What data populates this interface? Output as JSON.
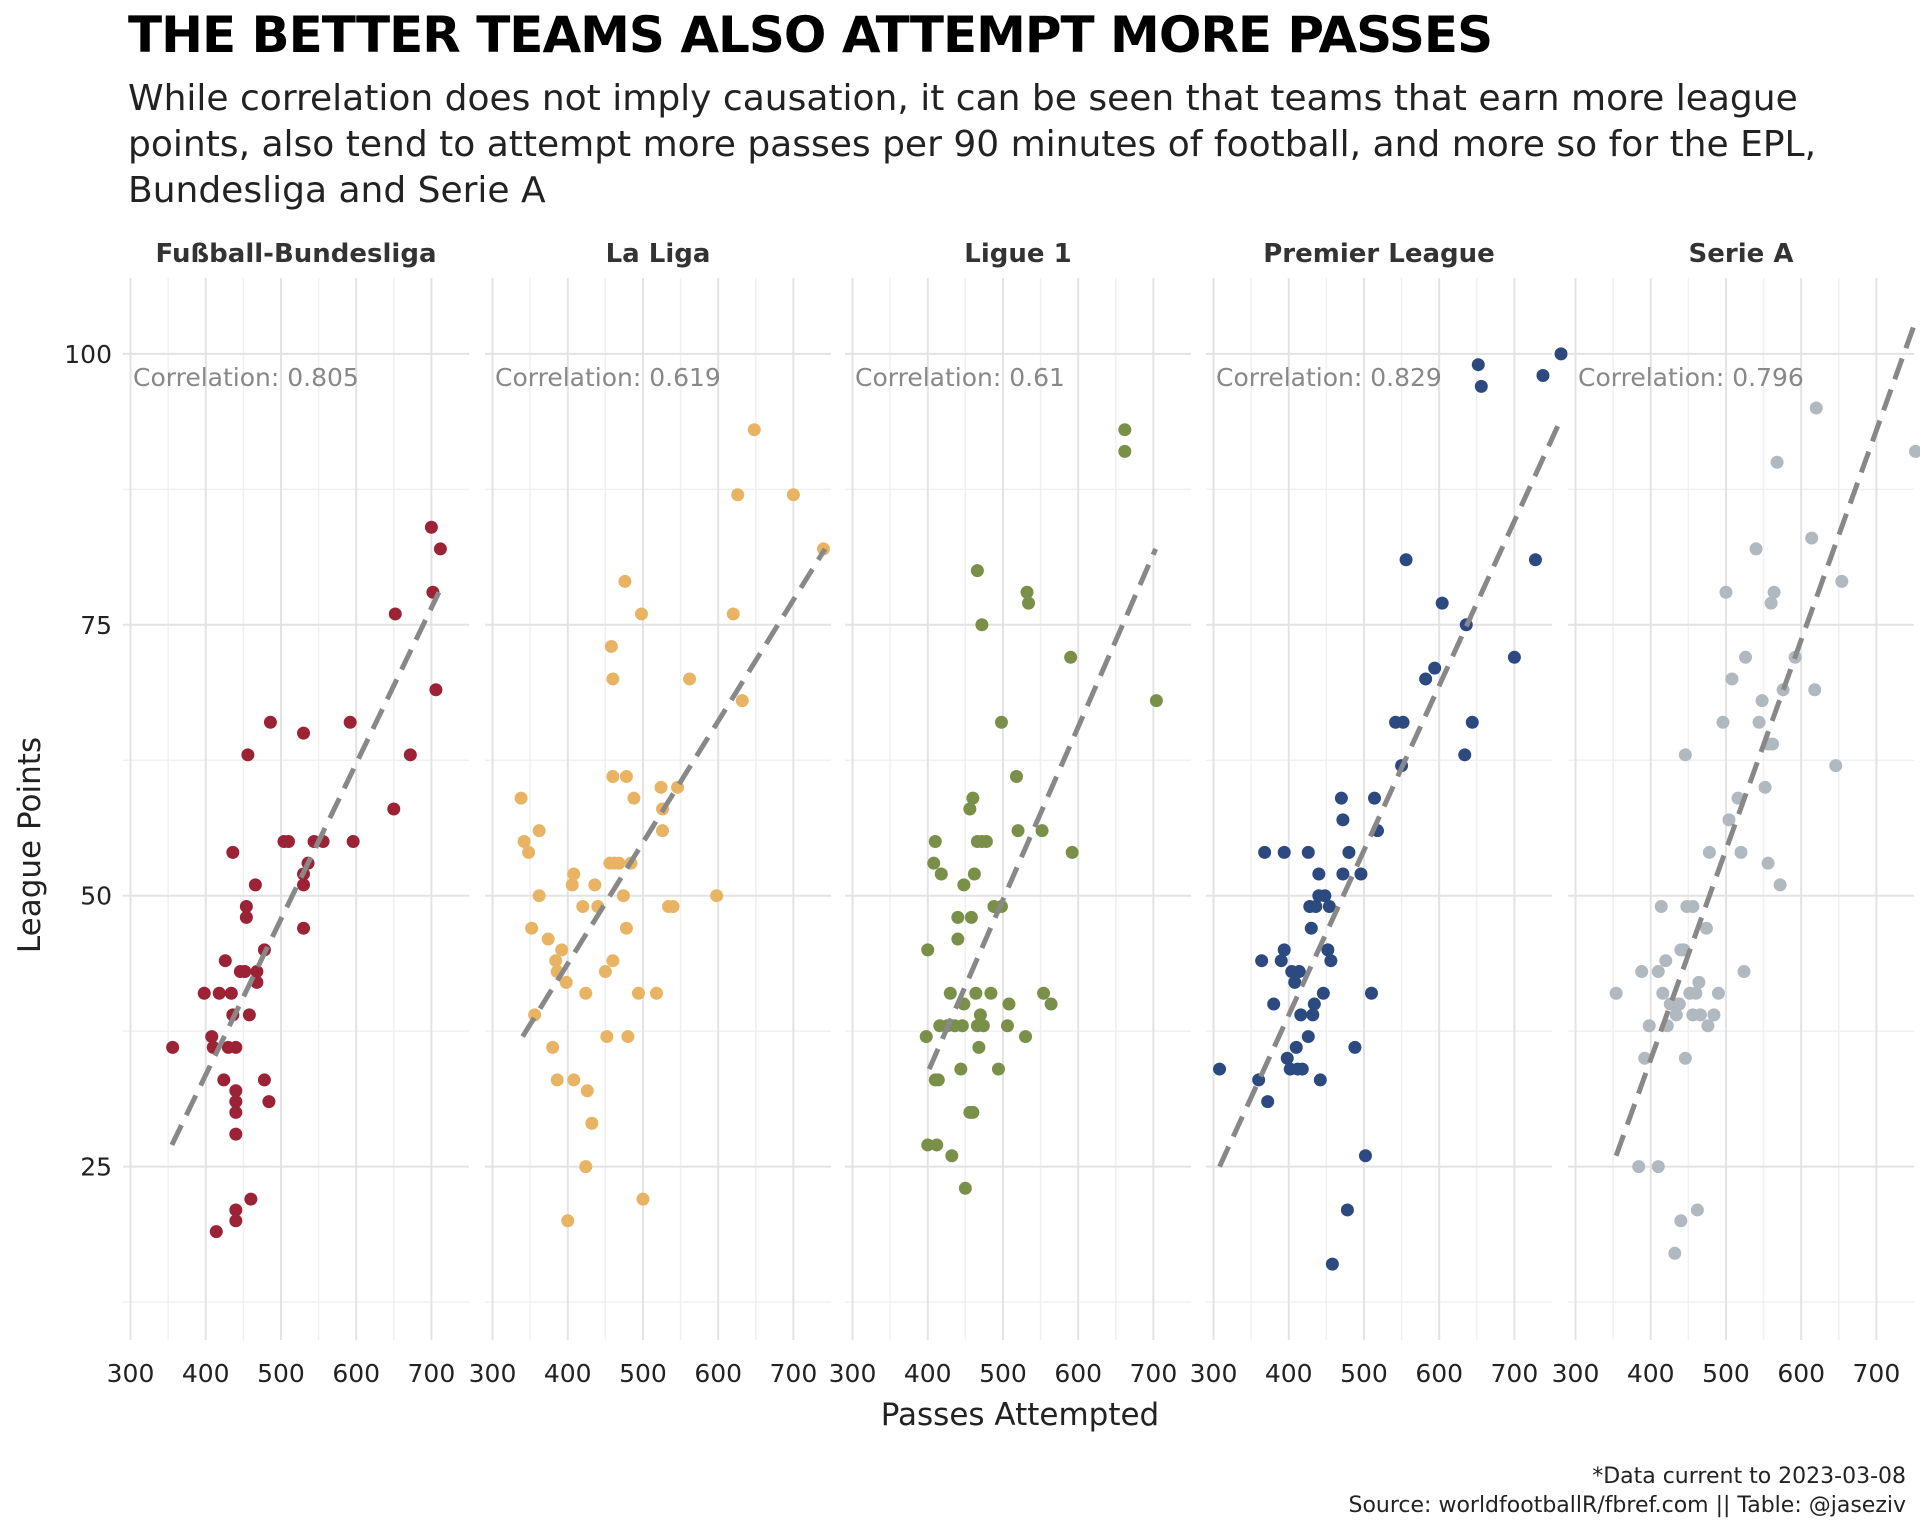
{
  "title": "THE BETTER TEAMS ALSO ATTEMPT MORE PASSES",
  "subtitle": "While correlation does not imply causation, it can be seen that teams that earn more league points, also tend to attempt more passes per 90 minutes of football, and more so for the EPL, Bundesliga and Serie A",
  "caption": {
    "line1": "*Data current to 2023-03-08",
    "line2": "Source: worldfootballR/fbref.com  ||  Table: @jaseziv"
  },
  "chart_data": {
    "type": "scatter",
    "xlabel": "Passes Attempted",
    "ylabel": "League Points",
    "xlim": [
      290,
      750
    ],
    "ylim": [
      9,
      107
    ],
    "x_ticks": [
      300,
      400,
      500,
      600,
      700
    ],
    "y_ticks": [
      25,
      50,
      75,
      100
    ],
    "grid": true,
    "trend_line_color": "#888888",
    "panels": [
      {
        "name": "Fußball-Bundesliga",
        "correlation_label": "Correlation: 0.805",
        "color": "#9b2335",
        "trend": [
          [
            355,
            27
          ],
          [
            710,
            78
          ]
        ],
        "points": [
          [
            356,
            36
          ],
          [
            398,
            41
          ],
          [
            408,
            37
          ],
          [
            410,
            36
          ],
          [
            414,
            19
          ],
          [
            418,
            41
          ],
          [
            424,
            33
          ],
          [
            426,
            44
          ],
          [
            430,
            36
          ],
          [
            434,
            41
          ],
          [
            436,
            54
          ],
          [
            436,
            39
          ],
          [
            440,
            36
          ],
          [
            440,
            32
          ],
          [
            440,
            31
          ],
          [
            440,
            30
          ],
          [
            440,
            28
          ],
          [
            440,
            21
          ],
          [
            440,
            20
          ],
          [
            446,
            43
          ],
          [
            452,
            43
          ],
          [
            454,
            49
          ],
          [
            454,
            48
          ],
          [
            456,
            63
          ],
          [
            458,
            39
          ],
          [
            460,
            22
          ],
          [
            466,
            51
          ],
          [
            468,
            43
          ],
          [
            468,
            42
          ],
          [
            478,
            45
          ],
          [
            478,
            33
          ],
          [
            484,
            31
          ],
          [
            486,
            66
          ],
          [
            504,
            55
          ],
          [
            510,
            55
          ],
          [
            530,
            65
          ],
          [
            530,
            52
          ],
          [
            530,
            51
          ],
          [
            530,
            47
          ],
          [
            536,
            53
          ],
          [
            544,
            55
          ],
          [
            556,
            55
          ],
          [
            592,
            66
          ],
          [
            596,
            55
          ],
          [
            650,
            58
          ],
          [
            652,
            76
          ],
          [
            672,
            63
          ],
          [
            700,
            84
          ],
          [
            702,
            78
          ],
          [
            706,
            69
          ],
          [
            712,
            82
          ]
        ]
      },
      {
        "name": "La Liga",
        "correlation_label": "Correlation: 0.619",
        "color": "#e8b464",
        "trend": [
          [
            340,
            37
          ],
          [
            742,
            82
          ]
        ],
        "points": [
          [
            338,
            59
          ],
          [
            342,
            55
          ],
          [
            348,
            54
          ],
          [
            352,
            47
          ],
          [
            356,
            39
          ],
          [
            362,
            56
          ],
          [
            362,
            50
          ],
          [
            374,
            46
          ],
          [
            380,
            36
          ],
          [
            384,
            44
          ],
          [
            386,
            43
          ],
          [
            386,
            33
          ],
          [
            392,
            45
          ],
          [
            398,
            42
          ],
          [
            400,
            20
          ],
          [
            406,
            51
          ],
          [
            408,
            33
          ],
          [
            408,
            52
          ],
          [
            420,
            49
          ],
          [
            424,
            41
          ],
          [
            424,
            25
          ],
          [
            426,
            32
          ],
          [
            432,
            29
          ],
          [
            436,
            51
          ],
          [
            440,
            49
          ],
          [
            450,
            43
          ],
          [
            452,
            37
          ],
          [
            456,
            53
          ],
          [
            458,
            73
          ],
          [
            460,
            61
          ],
          [
            460,
            70
          ],
          [
            460,
            44
          ],
          [
            462,
            53
          ],
          [
            468,
            53
          ],
          [
            474,
            50
          ],
          [
            476,
            79
          ],
          [
            478,
            61
          ],
          [
            478,
            47
          ],
          [
            480,
            37
          ],
          [
            484,
            53
          ],
          [
            488,
            59
          ],
          [
            494,
            41
          ],
          [
            498,
            76
          ],
          [
            500,
            22
          ],
          [
            518,
            41
          ],
          [
            524,
            60
          ],
          [
            526,
            58
          ],
          [
            526,
            56
          ],
          [
            534,
            49
          ],
          [
            540,
            49
          ],
          [
            546,
            60
          ],
          [
            562,
            70
          ],
          [
            598,
            50
          ],
          [
            620,
            76
          ],
          [
            626,
            87
          ],
          [
            632,
            68
          ],
          [
            648,
            93
          ],
          [
            700,
            87
          ],
          [
            740,
            82
          ]
        ]
      },
      {
        "name": "Ligue 1",
        "correlation_label": "Correlation: 0.61",
        "color": "#7a9048",
        "trend": [
          [
            402,
            34
          ],
          [
            703,
            82
          ]
        ],
        "points": [
          [
            398,
            37
          ],
          [
            400,
            45
          ],
          [
            400,
            27
          ],
          [
            408,
            53
          ],
          [
            410,
            55
          ],
          [
            410,
            33
          ],
          [
            412,
            27
          ],
          [
            414,
            33
          ],
          [
            416,
            38
          ],
          [
            418,
            52
          ],
          [
            426,
            38
          ],
          [
            430,
            41
          ],
          [
            432,
            26
          ],
          [
            436,
            38
          ],
          [
            440,
            48
          ],
          [
            440,
            46
          ],
          [
            444,
            34
          ],
          [
            446,
            38
          ],
          [
            448,
            40
          ],
          [
            448,
            51
          ],
          [
            450,
            23
          ],
          [
            456,
            58
          ],
          [
            456,
            30
          ],
          [
            458,
            48
          ],
          [
            460,
            59
          ],
          [
            460,
            30
          ],
          [
            462,
            52
          ],
          [
            464,
            41
          ],
          [
            466,
            38
          ],
          [
            466,
            55
          ],
          [
            466,
            80
          ],
          [
            468,
            36
          ],
          [
            470,
            39
          ],
          [
            472,
            75
          ],
          [
            472,
            55
          ],
          [
            474,
            38
          ],
          [
            478,
            55
          ],
          [
            484,
            41
          ],
          [
            488,
            49
          ],
          [
            494,
            34
          ],
          [
            498,
            49
          ],
          [
            498,
            66
          ],
          [
            506,
            38
          ],
          [
            508,
            40
          ],
          [
            518,
            61
          ],
          [
            520,
            56
          ],
          [
            530,
            37
          ],
          [
            532,
            78
          ],
          [
            534,
            77
          ],
          [
            552,
            56
          ],
          [
            554,
            41
          ],
          [
            564,
            40
          ],
          [
            590,
            72
          ],
          [
            592,
            54
          ],
          [
            662,
            93
          ],
          [
            662,
            91
          ],
          [
            704,
            68
          ]
        ]
      },
      {
        "name": "Premier League",
        "correlation_label": "Correlation: 0.829",
        "color": "#2c4a80",
        "trend": [
          [
            308,
            25
          ],
          [
            762,
            94
          ]
        ],
        "points": [
          [
            308,
            34
          ],
          [
            360,
            33
          ],
          [
            364,
            44
          ],
          [
            368,
            54
          ],
          [
            372,
            31
          ],
          [
            380,
            40
          ],
          [
            390,
            44
          ],
          [
            394,
            54
          ],
          [
            394,
            45
          ],
          [
            398,
            35
          ],
          [
            402,
            34
          ],
          [
            404,
            43
          ],
          [
            408,
            42
          ],
          [
            410,
            36
          ],
          [
            412,
            34
          ],
          [
            414,
            43
          ],
          [
            416,
            39
          ],
          [
            418,
            34
          ],
          [
            426,
            37
          ],
          [
            426,
            54
          ],
          [
            428,
            49
          ],
          [
            430,
            47
          ],
          [
            432,
            39
          ],
          [
            434,
            40
          ],
          [
            436,
            49
          ],
          [
            440,
            52
          ],
          [
            440,
            50
          ],
          [
            442,
            33
          ],
          [
            446,
            41
          ],
          [
            448,
            50
          ],
          [
            452,
            45
          ],
          [
            454,
            49
          ],
          [
            456,
            44
          ],
          [
            458,
            16
          ],
          [
            470,
            59
          ],
          [
            472,
            57
          ],
          [
            472,
            52
          ],
          [
            478,
            21
          ],
          [
            480,
            54
          ],
          [
            488,
            36
          ],
          [
            496,
            52
          ],
          [
            502,
            26
          ],
          [
            510,
            41
          ],
          [
            514,
            59
          ],
          [
            518,
            56
          ],
          [
            542,
            66
          ],
          [
            550,
            62
          ],
          [
            552,
            66
          ],
          [
            556,
            81
          ],
          [
            582,
            70
          ],
          [
            594,
            71
          ],
          [
            604,
            77
          ],
          [
            634,
            63
          ],
          [
            636,
            75
          ],
          [
            644,
            66
          ],
          [
            652,
            99
          ],
          [
            656,
            97
          ],
          [
            700,
            72
          ],
          [
            728,
            81
          ],
          [
            738,
            98
          ],
          [
            762,
            100
          ]
        ]
      },
      {
        "name": "Serie A",
        "correlation_label": "Correlation: 0.796",
        "color": "#b0b8c0",
        "trend": [
          [
            354,
            26
          ],
          [
            752,
            103
          ]
        ],
        "points": [
          [
            354,
            41
          ],
          [
            384,
            25
          ],
          [
            388,
            43
          ],
          [
            392,
            35
          ],
          [
            398,
            38
          ],
          [
            410,
            43
          ],
          [
            410,
            25
          ],
          [
            414,
            49
          ],
          [
            416,
            41
          ],
          [
            420,
            44
          ],
          [
            422,
            38
          ],
          [
            426,
            40
          ],
          [
            428,
            40
          ],
          [
            432,
            17
          ],
          [
            434,
            39
          ],
          [
            436,
            40
          ],
          [
            438,
            40
          ],
          [
            440,
            20
          ],
          [
            440,
            45
          ],
          [
            444,
            45
          ],
          [
            446,
            63
          ],
          [
            446,
            35
          ],
          [
            448,
            49
          ],
          [
            452,
            41
          ],
          [
            456,
            39
          ],
          [
            456,
            49
          ],
          [
            460,
            41
          ],
          [
            462,
            21
          ],
          [
            464,
            42
          ],
          [
            466,
            39
          ],
          [
            474,
            47
          ],
          [
            476,
            38
          ],
          [
            478,
            54
          ],
          [
            484,
            39
          ],
          [
            490,
            41
          ],
          [
            496,
            66
          ],
          [
            500,
            78
          ],
          [
            504,
            57
          ],
          [
            508,
            70
          ],
          [
            516,
            59
          ],
          [
            520,
            54
          ],
          [
            524,
            43
          ],
          [
            526,
            72
          ],
          [
            540,
            82
          ],
          [
            544,
            66
          ],
          [
            548,
            68
          ],
          [
            552,
            60
          ],
          [
            556,
            64
          ],
          [
            556,
            53
          ],
          [
            560,
            77
          ],
          [
            562,
            64
          ],
          [
            564,
            78
          ],
          [
            568,
            90
          ],
          [
            572,
            51
          ],
          [
            576,
            69
          ],
          [
            592,
            72
          ],
          [
            614,
            83
          ],
          [
            618,
            69
          ],
          [
            620,
            95
          ],
          [
            646,
            62
          ],
          [
            654,
            79
          ],
          [
            752,
            91
          ]
        ]
      }
    ]
  }
}
